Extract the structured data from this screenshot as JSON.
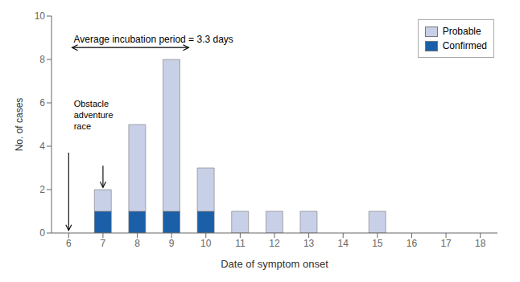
{
  "chart_data": {
    "type": "bar",
    "stacked": true,
    "x": [
      6,
      7,
      8,
      9,
      10,
      11,
      12,
      13,
      14,
      15,
      16,
      17,
      18
    ],
    "series": [
      {
        "name": "Confirmed",
        "color": "#1a5fa8",
        "values": [
          0,
          1,
          1,
          1,
          1,
          0,
          0,
          0,
          0,
          0,
          0,
          0,
          0
        ]
      },
      {
        "name": "Probable",
        "color": "#c8d0e8",
        "values": [
          0,
          1,
          4,
          7,
          2,
          1,
          1,
          1,
          0,
          1,
          0,
          0,
          0
        ]
      }
    ],
    "xlabel": "Date of symptom onset",
    "ylabel": "No. of cases",
    "xlim": [
      5.5,
      18.5
    ],
    "xticks": [
      6,
      7,
      8,
      9,
      10,
      11,
      12,
      13,
      14,
      15,
      16,
      17,
      18
    ],
    "ylim": [
      0,
      10
    ],
    "yticks": [
      0,
      2,
      4,
      6,
      8,
      10
    ],
    "grid": false,
    "legend": "upper right",
    "annotations": [
      {
        "text": "Average incubation period = 3.3 days",
        "x": 6.1,
        "y": 8.55,
        "arrow_to": [
          9.5,
          8.55
        ],
        "arrow": "both"
      },
      {
        "text": "Obstacle\nadventure\nrace",
        "x": 6.15,
        "y": 6.2
      },
      {
        "x": 6.0,
        "y": 3.7,
        "arrow_to": [
          6.0,
          0.12
        ],
        "arrow": "end"
      },
      {
        "x": 7.0,
        "y": 3.1,
        "arrow_to": [
          7.0,
          2.1
        ],
        "arrow": "end"
      }
    ]
  }
}
